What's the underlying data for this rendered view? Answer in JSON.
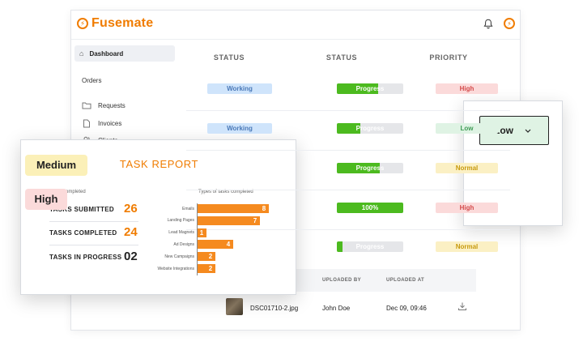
{
  "header": {
    "logo_text_a": "Fuse",
    "logo_text_b": "mate",
    "logo_glyph": "⚡",
    "bell_icon": "bell-icon",
    "user_badge_glyph": "⚡"
  },
  "sidebar": {
    "dashboard_label": "Dashboard",
    "orders_label": "Orders",
    "items": [
      {
        "label": "Requests",
        "icon": "folder-icon"
      },
      {
        "label": "Invoices",
        "icon": "document-icon"
      },
      {
        "label": "Clients",
        "icon": "users-icon"
      }
    ]
  },
  "table": {
    "columns": [
      "STATUS",
      "STATUS",
      "PRIORITY"
    ],
    "rows": [
      {
        "status": "Working",
        "progress_label": "Progress",
        "progress": 0.62,
        "priority": "High",
        "priority_level": "high"
      },
      {
        "status": "Working",
        "progress_label": "Progress",
        "progress": 0.35,
        "priority": "Low",
        "priority_level": "low"
      },
      {
        "status": "",
        "progress_label": "Progress",
        "progress": 0.65,
        "priority": "Normal",
        "priority_level": "normal"
      },
      {
        "status": "",
        "progress_label": "100%",
        "progress": 1.0,
        "priority": "High",
        "priority_level": "high"
      },
      {
        "status": "",
        "progress_label": "Progress",
        "progress": 0.08,
        "priority": "Normal",
        "priority_level": "normal"
      }
    ]
  },
  "uploads": {
    "columns": [
      "UPLOADED BY",
      "UPLOADED AT"
    ],
    "file_name": "DSC01710-2.jpg",
    "uploaded_by": "John Doe",
    "uploaded_at": "Dec 09, 09:46",
    "download_icon": "download-icon"
  },
  "report": {
    "title": "TASK REPORT",
    "tasks_completed_label": "Tasks completed",
    "types_label": "Types of tasks completed",
    "stats": [
      {
        "label": "TASKS SUBMITTED",
        "value": "26",
        "color": "orange"
      },
      {
        "label": "TASKS COMPLETED",
        "value": "24",
        "color": "orange"
      },
      {
        "label": "TASKS IN PROGRESS",
        "value": "02",
        "color": "dark"
      }
    ]
  },
  "chart_data": {
    "type": "bar",
    "orientation": "horizontal",
    "title": "Types of tasks completed",
    "categories": [
      "Emails",
      "Landing Pages",
      "Lead Magnets",
      "Ad Designs",
      "New Campaigns",
      "Website Integrations"
    ],
    "values": [
      8,
      7,
      1,
      4,
      2,
      2
    ],
    "color": "#f58a1f",
    "xlim": [
      0,
      8
    ],
    "grid": false
  },
  "dropdown": {
    "selected": "Low",
    "options": [
      "Medium",
      "High"
    ]
  },
  "colors": {
    "brand": "#f07c00",
    "progress": "#4cba1f",
    "working": "#cfe4fb"
  }
}
